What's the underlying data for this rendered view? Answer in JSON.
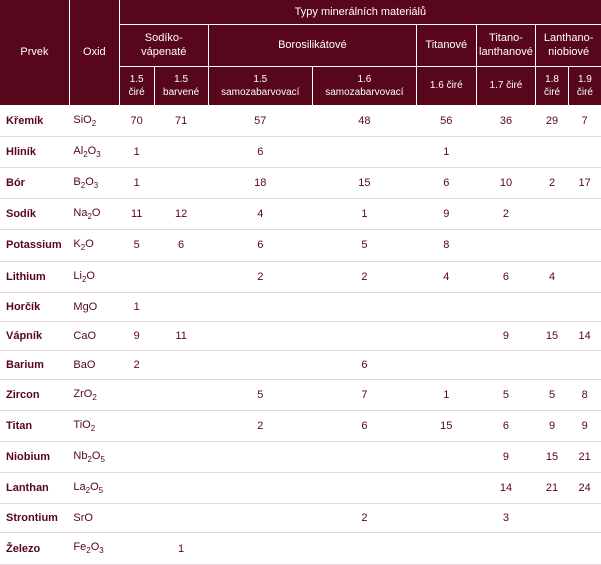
{
  "header": {
    "element": "Prvek",
    "oxide": "Oxid",
    "supergroup": "Typy minerálních materiálů",
    "groups": [
      "Sodíko-\nvápenaté",
      "Borosilikátové",
      "Titanové",
      "Titano-\nlanthanové",
      "Lanthano-\nniobiové"
    ],
    "subs": [
      "1.5\nčiré",
      "1.5\nbarvené",
      "1.5\nsamozabarvovací",
      "1.6\nsamozabarvovací",
      "1.6 čiré",
      "1.7 čiré",
      "1.8\nčiré",
      "1.9\nčiré"
    ]
  },
  "rows": [
    {
      "el": "Křemík",
      "oxide_html": "SiO<sub>2</sub>",
      "v": [
        "70",
        "71",
        "57",
        "48",
        "56",
        "36",
        "29",
        "7"
      ]
    },
    {
      "el": "Hliník",
      "oxide_html": "Al<sub>2</sub>O<sub>3</sub>",
      "v": [
        "1",
        "",
        "6",
        "",
        "1",
        "",
        "",
        ""
      ]
    },
    {
      "el": "Bór",
      "oxide_html": "B<sub>2</sub>O<sub>3</sub>",
      "v": [
        "1",
        "",
        "18",
        "15",
        "6",
        "10",
        "2",
        "17"
      ]
    },
    {
      "el": "Sodík",
      "oxide_html": "Na<sub>2</sub>O",
      "v": [
        "11",
        "12",
        "4",
        "1",
        "9",
        "2",
        "",
        ""
      ]
    },
    {
      "el": "Potassium",
      "oxide_html": "K<sub>2</sub>O",
      "v": [
        "5",
        "6",
        "6",
        "5",
        "8",
        "",
        "",
        ""
      ]
    },
    {
      "el": "Lithium",
      "oxide_html": "Li<sub>2</sub>O",
      "v": [
        "",
        "",
        "2",
        "2",
        "4",
        "6",
        "4",
        ""
      ]
    },
    {
      "el": "Horčík",
      "oxide_html": "MgO",
      "v": [
        "1",
        "",
        "",
        "",
        "",
        "",
        "",
        ""
      ]
    },
    {
      "el": "Vápník",
      "oxide_html": "CaO",
      "v": [
        "9",
        "11",
        "",
        "",
        "",
        "9",
        "15",
        "14"
      ]
    },
    {
      "el": "Barium",
      "oxide_html": "BaO",
      "v": [
        "2",
        "",
        "",
        "6",
        "",
        "",
        "",
        ""
      ]
    },
    {
      "el": "Zircon",
      "oxide_html": "ZrO<sub>2</sub>",
      "v": [
        "",
        "",
        "5",
        "7",
        "1",
        "5",
        "5",
        "8"
      ]
    },
    {
      "el": "Titan",
      "oxide_html": "TiO<sub>2</sub>",
      "v": [
        "",
        "",
        "2",
        "6",
        "15",
        "6",
        "9",
        "9"
      ]
    },
    {
      "el": "Niobium",
      "oxide_html": "Nb<sub>2</sub>O<sub>5</sub>",
      "v": [
        "",
        "",
        "",
        "",
        "",
        "9",
        "15",
        "21"
      ]
    },
    {
      "el": "Lanthan",
      "oxide_html": "La<sub>2</sub>O<sub>5</sub>",
      "v": [
        "",
        "",
        "",
        "",
        "",
        "14",
        "21",
        "24"
      ]
    },
    {
      "el": "Strontium",
      "oxide_html": "SrO",
      "v": [
        "",
        "",
        "",
        "2",
        "",
        "3",
        "",
        ""
      ]
    },
    {
      "el": "Železo",
      "oxide_html": "Fe<sub>2</sub>O<sub>3</sub>",
      "v": [
        "",
        "1",
        "",
        "",
        "",
        "",
        "",
        ""
      ]
    }
  ],
  "colors": {
    "header_bg": "#57061b",
    "header_fg": "#ffffff",
    "body_fg": "#57061b",
    "row_border": "#e8d6dc",
    "page_bg": "#ffffff"
  }
}
